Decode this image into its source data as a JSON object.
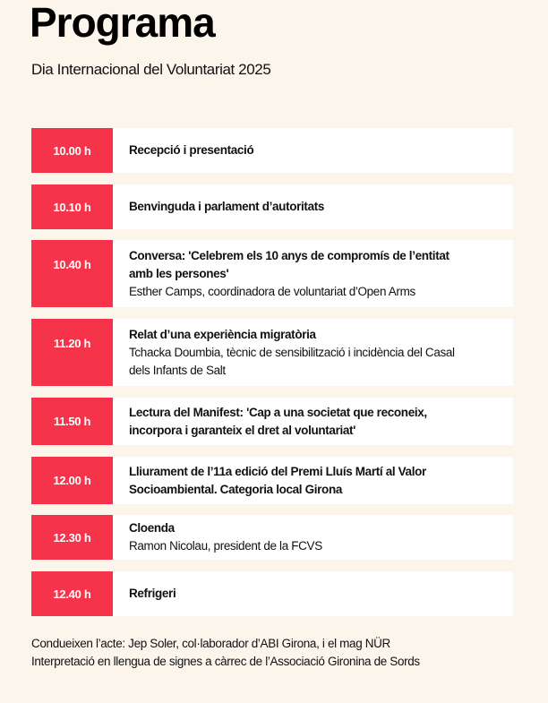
{
  "title": "Programa",
  "subtitle": "Dia Internacional del Voluntariat 2025",
  "accent_color": "#f5334a",
  "items": [
    {
      "time": "10.00 h",
      "title": "Recepció i presentació",
      "detail": ""
    },
    {
      "time": "10.10 h",
      "title": "Benvinguda i parlament d’autoritats",
      "detail": ""
    },
    {
      "time": "10.40 h",
      "title": "Conversa: 'Celebrem els 10 anys de compromís de l’entitat amb les persones'",
      "detail": "Esther Camps, coordinadora de voluntariat d’Open Arms"
    },
    {
      "time": "11.20 h",
      "title": "Relat d’una experiència migratòria",
      "detail": "Tchacka Doumbia, tècnic de sensibilització i incidència del Casal dels Infants de Salt"
    },
    {
      "time": "11.50 h",
      "title": "Lectura del Manifest: 'Cap a una societat que reconeix, incorpora i garanteix el dret al voluntariat'",
      "detail": ""
    },
    {
      "time": "12.00 h",
      "title": "Lliurament de l’11a edició del Premi Lluís Martí al Valor Socioambiental. Categoria local Girona",
      "detail": ""
    },
    {
      "time": "12.30 h",
      "title": "Cloenda",
      "detail": "Ramon Nicolau, president de la FCVS"
    },
    {
      "time": "12.40 h",
      "title": "Refrigeri",
      "detail": ""
    }
  ],
  "footer": {
    "line1": "Condueixen l’acte: Jep Soler, col·laborador d’ABI Girona, i el mag NÜR",
    "line2": "Interpretació en llengua de signes a càrrec de l’Associació Gironina de Sords"
  }
}
